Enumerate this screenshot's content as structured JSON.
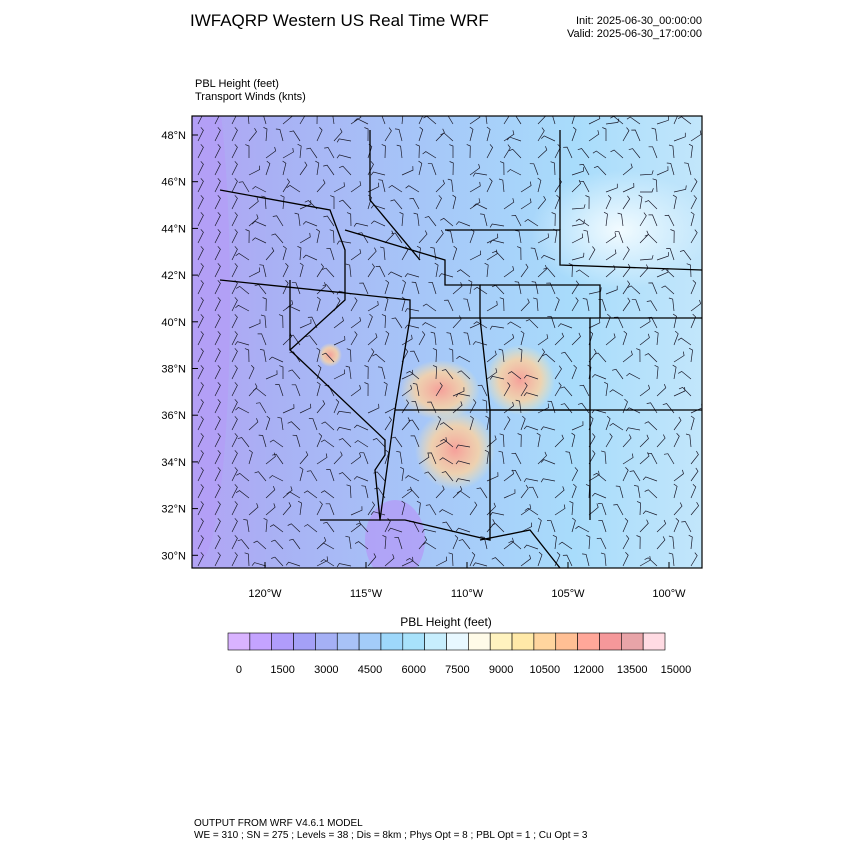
{
  "header": {
    "title": "IWFAQRP Western US Real Time WRF",
    "init": "Init: 2025-06-30_00:00:00",
    "valid": "Valid: 2025-06-30_17:00:00"
  },
  "fields": {
    "primary": "PBL Height   (feet)",
    "secondary": "Transport Winds   (knts)"
  },
  "map": {
    "lat_labels": [
      "48°N",
      "46°N",
      "44°N",
      "42°N",
      "40°N",
      "38°N",
      "36°N",
      "34°N",
      "32°N",
      "30°N"
    ],
    "lon_labels": [
      "120°W",
      "115°W",
      "110°W",
      "105°W",
      "100°W"
    ]
  },
  "colorbar": {
    "title": "PBL Height  (feet)",
    "labels": [
      "0",
      "1500",
      "3000",
      "4500",
      "6000",
      "7500",
      "9000",
      "10500",
      "12000",
      "13500",
      "15000"
    ],
    "colors": [
      "#d9b3ff",
      "#c4a3ff",
      "#b09cfb",
      "#a4a0f7",
      "#a5b0f5",
      "#a8c2f7",
      "#a3ccf9",
      "#9ed8fb",
      "#a8e2fb",
      "#c7eefd",
      "#e8f8ff",
      "#fffbe8",
      "#fff3bf",
      "#ffe9a8",
      "#ffd59e",
      "#ffbf94",
      "#ffa799",
      "#f5989a",
      "#e8a4a8",
      "#ffdbe3"
    ]
  },
  "footer": {
    "line1": "OUTPUT FROM WRF V4.6.1 MODEL",
    "line2": "WE = 310 ; SN = 275 ; Levels = 38 ; Dis = 8km ; Phys Opt = 8 ; PBL Opt = 1 ; Cu Opt = 3"
  }
}
